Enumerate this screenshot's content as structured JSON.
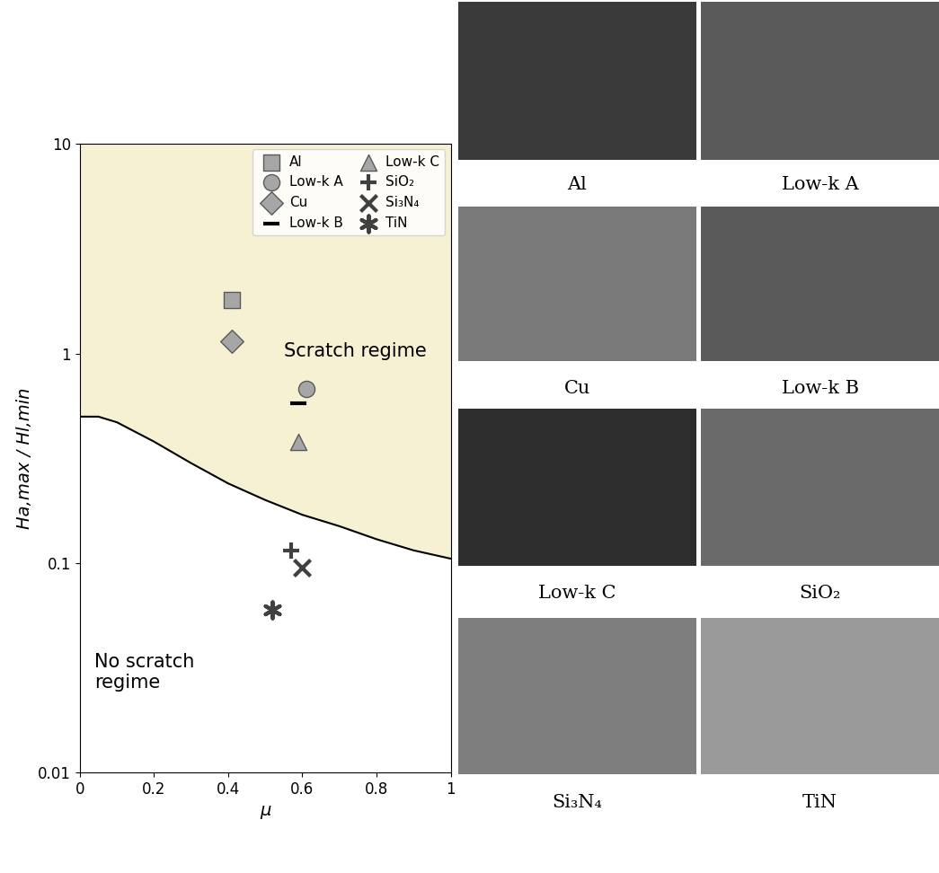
{
  "chart_data": {
    "type": "scatter",
    "x_label": "μ",
    "y_label": "Ha,max / Hl,min",
    "log": "y",
    "xlim": [
      0,
      1
    ],
    "xticks": [
      0,
      0.2,
      0.4,
      0.6,
      0.8,
      1
    ],
    "ylim": [
      0.01,
      10
    ],
    "yticks": [
      0.01,
      0.1,
      1,
      10
    ],
    "grid": false,
    "legend": "upper right",
    "series": [
      {
        "name": "Al",
        "color": "#a6a6a6",
        "marker": "square",
        "x": [
          0.41
        ],
        "values": [
          1.8
        ]
      },
      {
        "name": "Low-k A",
        "color": "#a6a6a6",
        "marker": "circle",
        "x": [
          0.61
        ],
        "values": [
          0.68
        ]
      },
      {
        "name": "Cu",
        "color": "#a6a6a6",
        "marker": "diamond",
        "x": [
          0.41
        ],
        "values": [
          1.15
        ]
      },
      {
        "name": "Low-k B",
        "color": "#000000",
        "marker": "dash",
        "x": [
          0.59
        ],
        "values": [
          0.58
        ]
      },
      {
        "name": "Low-k C",
        "color": "#a6a6a6",
        "marker": "triangle",
        "x": [
          0.59
        ],
        "values": [
          0.38
        ]
      },
      {
        "name": "SiO₂",
        "color": "#404040",
        "marker": "plus",
        "x": [
          0.57
        ],
        "values": [
          0.115
        ]
      },
      {
        "name": "Si₃N₄",
        "color": "#404040",
        "marker": "x",
        "x": [
          0.6
        ],
        "values": [
          0.095
        ]
      },
      {
        "name": "TiN",
        "color": "#404040",
        "marker": "asterisk",
        "x": [
          0.52
        ],
        "values": [
          0.06
        ]
      }
    ],
    "boundary": {
      "color": "#000000",
      "x": [
        0,
        0.05,
        0.1,
        0.2,
        0.3,
        0.4,
        0.5,
        0.6,
        0.7,
        0.8,
        0.9,
        1
      ],
      "values": [
        0.5,
        0.5,
        0.47,
        0.38,
        0.3,
        0.24,
        0.2,
        0.17,
        0.15,
        0.13,
        0.115,
        0.105
      ]
    },
    "annotations": [
      "Scratch regime",
      "No scratch\nregime"
    ]
  },
  "micrographs": [
    "Al",
    "Low-k A",
    "Cu",
    "Low-k B",
    "Low-k C",
    "SiO₂",
    "Si₃N₄",
    "TiN"
  ]
}
